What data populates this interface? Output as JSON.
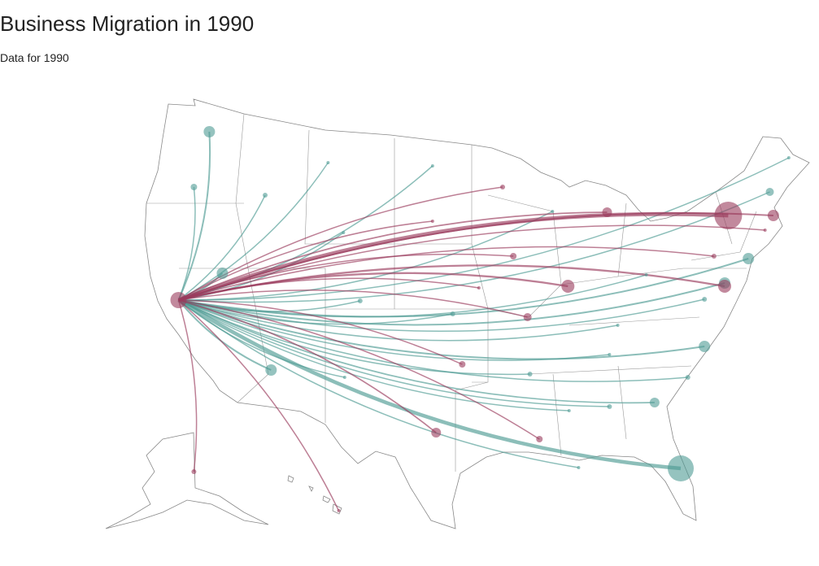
{
  "header": {
    "title": "Business Migration in 1990",
    "subtitle": "Data for 1990"
  },
  "colors": {
    "inflow": "#4f9b94",
    "outflow": "#993a5c",
    "border": "#888888"
  },
  "chart_data": {
    "type": "flow-map",
    "title": "Business Migration in 1990",
    "subtitle": "Data for 1990",
    "hub": {
      "lon": -121.5,
      "lat": 38.5,
      "size": 16,
      "type": "outflow"
    },
    "flows": [
      {
        "lon": -118.7,
        "lat": 47.9,
        "size": 7,
        "type": "inflow"
      },
      {
        "lon": -120,
        "lat": 44.5,
        "size": 4,
        "type": "inflow"
      },
      {
        "lon": -117.6,
        "lat": 39.2,
        "size": 7,
        "type": "inflow"
      },
      {
        "lon": -114,
        "lat": 44,
        "size": 3,
        "type": "inflow"
      },
      {
        "lon": -108.7,
        "lat": 46,
        "size": 2,
        "type": "inflow"
      },
      {
        "lon": -99.9,
        "lat": 45.8,
        "size": 2,
        "type": "inflow"
      },
      {
        "lon": -107.4,
        "lat": 41.7,
        "size": 2,
        "type": "inflow"
      },
      {
        "lon": -106,
        "lat": 37.5,
        "size": 3,
        "type": "inflow"
      },
      {
        "lon": -113.5,
        "lat": 33.25,
        "size": 7,
        "type": "inflow"
      },
      {
        "lon": -107.3,
        "lat": 32.8,
        "size": 2,
        "type": "inflow"
      },
      {
        "lon": -98.2,
        "lat": 36.7,
        "size": 3,
        "type": "inflow"
      },
      {
        "lon": -91.7,
        "lat": 33,
        "size": 3,
        "type": "inflow"
      },
      {
        "lon": -85,
        "lat": 34.2,
        "size": 2,
        "type": "inflow"
      },
      {
        "lon": -77,
        "lat": 34.7,
        "size": 7,
        "type": "inflow"
      },
      {
        "lon": -78.4,
        "lat": 32.8,
        "size": 3,
        "type": "inflow"
      },
      {
        "lon": -81.2,
        "lat": 31.25,
        "size": 6,
        "type": "inflow"
      },
      {
        "lon": -85,
        "lat": 31,
        "size": 3,
        "type": "inflow"
      },
      {
        "lon": -88.4,
        "lat": 30.75,
        "size": 2,
        "type": "inflow"
      },
      {
        "lon": -87.6,
        "lat": 27.25,
        "size": 2,
        "type": "inflow"
      },
      {
        "lon": -79,
        "lat": 27.2,
        "size": 16,
        "type": "inflow"
      },
      {
        "lon": -84.3,
        "lat": 36,
        "size": 2,
        "type": "inflow"
      },
      {
        "lon": -77,
        "lat": 37.6,
        "size": 3,
        "type": "inflow"
      },
      {
        "lon": -75.3,
        "lat": 38.6,
        "size": 7,
        "type": "inflow"
      },
      {
        "lon": -73.3,
        "lat": 40.1,
        "size": 7,
        "type": "inflow"
      },
      {
        "lon": -71.5,
        "lat": 44.2,
        "size": 5,
        "type": "inflow"
      },
      {
        "lon": -69.9,
        "lat": 46.3,
        "size": 2,
        "type": "inflow"
      },
      {
        "lon": -89.8,
        "lat": 43,
        "size": 2,
        "type": "inflow"
      },
      {
        "lon": -81.9,
        "lat": 39.1,
        "size": 2,
        "type": "inflow"
      },
      {
        "lon": -120,
        "lat": 27,
        "size": 3,
        "type": "outflow"
      },
      {
        "lon": -107.8,
        "lat": 24.6,
        "size": 2,
        "type": "outflow"
      },
      {
        "lon": -99.6,
        "lat": 29.4,
        "size": 6,
        "type": "outflow"
      },
      {
        "lon": -97.4,
        "lat": 33.6,
        "size": 4,
        "type": "outflow"
      },
      {
        "lon": -90.9,
        "lat": 29,
        "size": 4,
        "type": "outflow"
      },
      {
        "lon": -91.9,
        "lat": 36.5,
        "size": 5,
        "type": "outflow"
      },
      {
        "lon": -88.5,
        "lat": 38.4,
        "size": 8,
        "type": "outflow"
      },
      {
        "lon": -93.1,
        "lat": 40.25,
        "size": 4,
        "type": "outflow"
      },
      {
        "lon": -94,
        "lat": 44.5,
        "size": 3,
        "type": "outflow"
      },
      {
        "lon": -85.2,
        "lat": 42.95,
        "size": 6,
        "type": "outflow"
      },
      {
        "lon": -75,
        "lat": 42.75,
        "size": 17,
        "type": "outflow"
      },
      {
        "lon": -71.2,
        "lat": 42.75,
        "size": 7,
        "type": "outflow"
      },
      {
        "lon": -75.3,
        "lat": 38.4,
        "size": 8,
        "type": "outflow"
      },
      {
        "lon": -76.2,
        "lat": 40.25,
        "size": 3,
        "type": "outflow"
      },
      {
        "lon": -71.9,
        "lat": 41.85,
        "size": 2,
        "type": "outflow"
      },
      {
        "lon": -99.9,
        "lat": 42.4,
        "size": 2,
        "type": "outflow"
      },
      {
        "lon": -96,
        "lat": 38.3,
        "size": 2,
        "type": "outflow"
      }
    ]
  }
}
